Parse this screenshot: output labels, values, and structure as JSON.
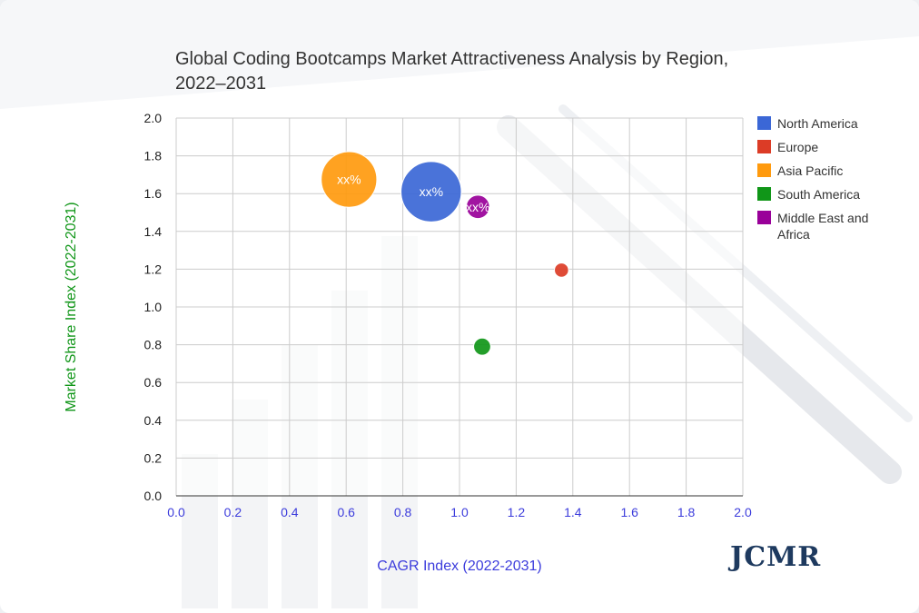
{
  "chart_data": {
    "type": "scatter",
    "title": "Global Coding Bootcamps Market Attractiveness Analysis by Region, 2022–2031",
    "xlabel": "CAGR Index (2022-2031)",
    "ylabel": "Market Share Index (2022-2031)",
    "xlim": [
      0.0,
      2.0
    ],
    "ylim": [
      0.0,
      2.0
    ],
    "x_ticks": [
      "0.0",
      "0.2",
      "0.4",
      "0.6",
      "0.8",
      "1.0",
      "1.2",
      "1.4",
      "1.6",
      "1.8",
      "2.0"
    ],
    "y_ticks": [
      "0.0",
      "0.2",
      "0.4",
      "0.6",
      "0.8",
      "1.0",
      "1.2",
      "1.4",
      "1.6",
      "1.8",
      "2.0"
    ],
    "grid": true,
    "legend_position": "right",
    "series": [
      {
        "name": "North America",
        "color": "#3b67d6",
        "x": 0.9,
        "y": 1.61,
        "bubble_size": 10,
        "label": "xx%"
      },
      {
        "name": "Europe",
        "color": "#dc3c26",
        "x": 1.36,
        "y": 1.195,
        "bubble_size": 0.55,
        "label": ""
      },
      {
        "name": "Asia Pacific",
        "color": "#ff9a0e",
        "x": 0.61,
        "y": 1.675,
        "bubble_size": 8.5,
        "label": "xx%"
      },
      {
        "name": "South America",
        "color": "#109618",
        "x": 1.08,
        "y": 0.79,
        "bubble_size": 0.8,
        "label": ""
      },
      {
        "name": "Middle East and Africa",
        "color": "#990099",
        "x": 1.065,
        "y": 1.53,
        "bubble_size": 1.5,
        "label": "xx%"
      }
    ]
  },
  "brand": {
    "name": "JCMR"
  }
}
